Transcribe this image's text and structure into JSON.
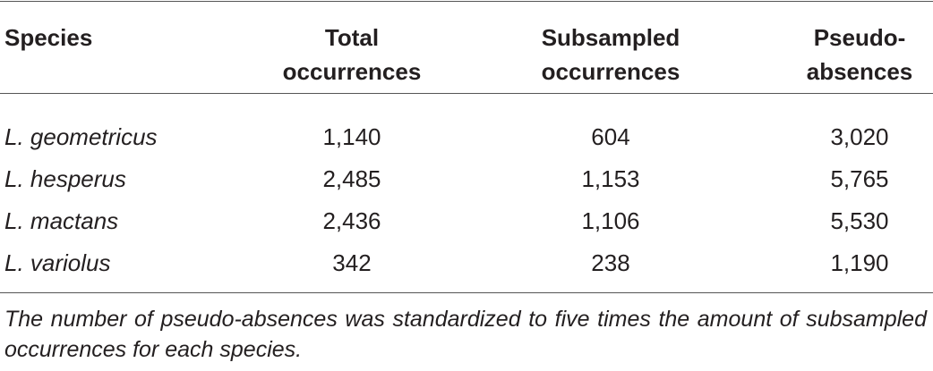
{
  "table": {
    "header": [
      "Species",
      "Total occurrences",
      "Subsampled occurrences",
      "Pseudo-absences"
    ],
    "rows": [
      [
        "L. geometricus",
        "1,140",
        "604",
        "3,020"
      ],
      [
        "L. hesperus",
        "2,485",
        "1,153",
        "5,765"
      ],
      [
        "L. mactans",
        "2,436",
        "1,106",
        "5,530"
      ],
      [
        "L. variolus",
        "342",
        "238",
        "1,190"
      ]
    ]
  },
  "footnote": "The number of pseudo-absences was standardized to five times the amount of subsampled occurrences for each species."
}
